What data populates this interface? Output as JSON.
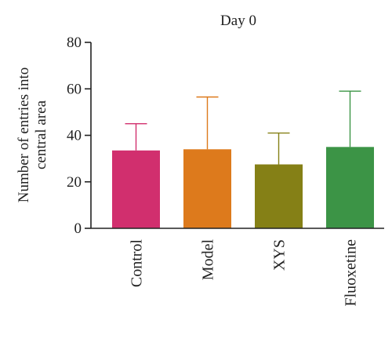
{
  "chart_data": {
    "type": "bar",
    "title": "Day 0",
    "ylabel_lines": [
      "Number of entries into",
      "central area"
    ],
    "ylim": [
      0,
      80
    ],
    "yticks": [
      0,
      20,
      40,
      60,
      80
    ],
    "categories": [
      "Control",
      "Model",
      "XYS",
      "Fluoxetine"
    ],
    "values": [
      33.5,
      34,
      27.5,
      35
    ],
    "errors_upper": [
      45,
      56.5,
      41,
      59
    ],
    "colors": [
      "#d12f6e",
      "#dd7a1c",
      "#858016",
      "#3c9446"
    ],
    "error_bar_direction": "upper-only",
    "grid": false,
    "legend": "none"
  }
}
